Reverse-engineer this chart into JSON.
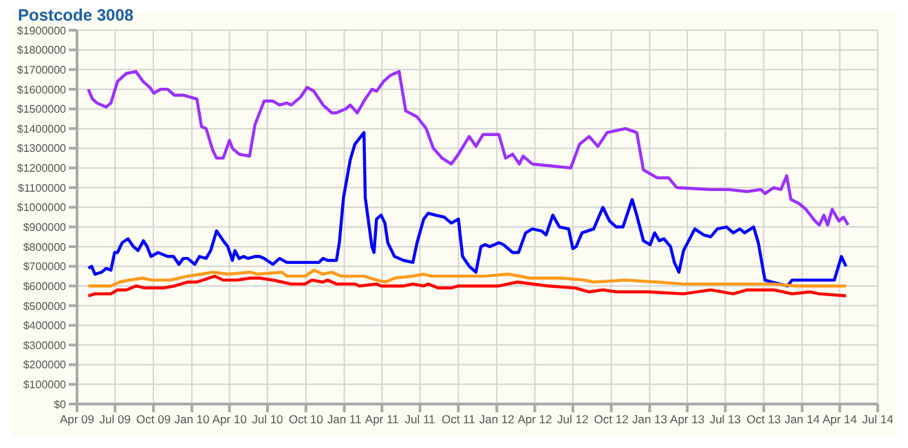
{
  "chart_data": {
    "type": "line",
    "title": "Postcode 3008",
    "grid": true,
    "marker": "none",
    "line_style": "solid",
    "xlim": [
      "2009-04-01",
      "2014-07-01"
    ],
    "xticks": [
      {
        "value": "2009-04-01",
        "label": "Apr 09"
      },
      {
        "value": "2009-07-01",
        "label": "Jul 09"
      },
      {
        "value": "2009-10-01",
        "label": "Oct 09"
      },
      {
        "value": "2010-01-01",
        "label": "Jan 10"
      },
      {
        "value": "2010-04-01",
        "label": "Apr 10"
      },
      {
        "value": "2010-07-01",
        "label": "Jul 10"
      },
      {
        "value": "2010-10-01",
        "label": "Oct 10"
      },
      {
        "value": "2011-01-01",
        "label": "Jan 11"
      },
      {
        "value": "2011-04-01",
        "label": "Apr 11"
      },
      {
        "value": "2011-07-01",
        "label": "Jul 11"
      },
      {
        "value": "2011-10-01",
        "label": "Oct 11"
      },
      {
        "value": "2012-01-01",
        "label": "Jan 12"
      },
      {
        "value": "2012-04-01",
        "label": "Apr 12"
      },
      {
        "value": "2012-07-01",
        "label": "Jul 12"
      },
      {
        "value": "2012-10-01",
        "label": "Oct 12"
      },
      {
        "value": "2013-01-01",
        "label": "Jan 13"
      },
      {
        "value": "2013-04-01",
        "label": "Apr 13"
      },
      {
        "value": "2013-07-01",
        "label": "Jul 13"
      },
      {
        "value": "2013-10-01",
        "label": "Oct 13"
      },
      {
        "value": "2014-01-01",
        "label": "Jan 14"
      },
      {
        "value": "2014-04-01",
        "label": "Apr 14"
      },
      {
        "value": "2014-07-01",
        "label": "Jul 14"
      }
    ],
    "ylim": [
      0,
      1900000
    ],
    "yticks": [
      {
        "value": 0,
        "label": "$0"
      },
      {
        "value": 100000,
        "label": "$100000"
      },
      {
        "value": 200000,
        "label": "$200000"
      },
      {
        "value": 300000,
        "label": "$300000"
      },
      {
        "value": 400000,
        "label": "$400000"
      },
      {
        "value": 500000,
        "label": "$500000"
      },
      {
        "value": 600000,
        "label": "$600000"
      },
      {
        "value": 700000,
        "label": "$700000"
      },
      {
        "value": 800000,
        "label": "$800000"
      },
      {
        "value": 900000,
        "label": "$900000"
      },
      {
        "value": 1000000,
        "label": "$1000000"
      },
      {
        "value": 1100000,
        "label": "$1100000"
      },
      {
        "value": 1200000,
        "label": "$1200000"
      },
      {
        "value": 1300000,
        "label": "$1300000"
      },
      {
        "value": 1400000,
        "label": "$1400000"
      },
      {
        "value": 1500000,
        "label": "$1500000"
      },
      {
        "value": 1600000,
        "label": "$1600000"
      },
      {
        "value": 1700000,
        "label": "$1700000"
      },
      {
        "value": 1800000,
        "label": "$1800000"
      },
      {
        "value": 1900000,
        "label": "$1900000"
      }
    ],
    "series": [
      {
        "color": "#9b30ff",
        "x": [
          "2009-04-28",
          "2009-05-08",
          "2009-05-19",
          "2009-06-10",
          "2009-06-21",
          "2009-07-07",
          "2009-07-28",
          "2009-08-20",
          "2009-09-06",
          "2009-09-22",
          "2009-10-02",
          "2009-10-18",
          "2009-11-04",
          "2009-11-20",
          "2009-12-11",
          "2009-12-28",
          "2010-01-13",
          "2010-01-24",
          "2010-02-04",
          "2010-02-20",
          "2010-03-01",
          "2010-03-17",
          "2010-04-01",
          "2010-04-08",
          "2010-04-24",
          "2010-05-19",
          "2010-06-01",
          "2010-06-23",
          "2010-07-14",
          "2010-07-30",
          "2010-08-16",
          "2010-08-27",
          "2010-09-18",
          "2010-10-04",
          "2010-10-20",
          "2010-11-11",
          "2010-12-02",
          "2010-12-13",
          "2011-01-04",
          "2011-01-15",
          "2011-02-01",
          "2011-02-17",
          "2011-03-08",
          "2011-03-19",
          "2011-04-05",
          "2011-04-21",
          "2011-05-12",
          "2011-05-28",
          "2011-06-24",
          "2011-07-16",
          "2011-08-02",
          "2011-08-23",
          "2011-09-14",
          "2011-10-01",
          "2011-10-27",
          "2011-11-12",
          "2011-11-29",
          "2012-01-06",
          "2012-01-22",
          "2012-02-08",
          "2012-02-24",
          "2012-03-04",
          "2012-03-26",
          "2012-06-26",
          "2012-07-17",
          "2012-08-09",
          "2012-08-30",
          "2012-09-21",
          "2012-11-04",
          "2012-12-01",
          "2012-12-17",
          "2013-01-19",
          "2013-02-15",
          "2013-03-07",
          "2013-05-27",
          "2013-07-09",
          "2013-08-22",
          "2013-09-24",
          "2013-10-04",
          "2013-10-25",
          "2013-11-11",
          "2013-11-25",
          "2013-12-05",
          "2013-12-24",
          "2014-01-10",
          "2014-02-01",
          "2014-02-11",
          "2014-02-22",
          "2014-03-03",
          "2014-03-14",
          "2014-03-30",
          "2014-04-10",
          "2014-04-21"
        ],
        "values": [
          1600000,
          1550000,
          1530000,
          1510000,
          1530000,
          1640000,
          1680000,
          1690000,
          1640000,
          1610000,
          1580000,
          1600000,
          1600000,
          1570000,
          1570000,
          1560000,
          1550000,
          1410000,
          1400000,
          1290000,
          1250000,
          1250000,
          1340000,
          1300000,
          1270000,
          1260000,
          1420000,
          1540000,
          1540000,
          1520000,
          1530000,
          1520000,
          1560000,
          1610000,
          1590000,
          1520000,
          1480000,
          1480000,
          1500000,
          1520000,
          1480000,
          1540000,
          1600000,
          1590000,
          1640000,
          1670000,
          1690000,
          1490000,
          1460000,
          1400000,
          1300000,
          1250000,
          1220000,
          1270000,
          1360000,
          1310000,
          1370000,
          1370000,
          1250000,
          1270000,
          1220000,
          1260000,
          1220000,
          1200000,
          1320000,
          1360000,
          1310000,
          1380000,
          1400000,
          1380000,
          1190000,
          1150000,
          1150000,
          1100000,
          1090000,
          1090000,
          1080000,
          1090000,
          1070000,
          1100000,
          1090000,
          1160000,
          1040000,
          1020000,
          990000,
          930000,
          910000,
          960000,
          910000,
          990000,
          930000,
          950000,
          910000
        ]
      },
      {
        "color": "#0000ff",
        "x": [
          "2009-04-28",
          "2009-05-06",
          "2009-05-14",
          "2009-05-30",
          "2009-06-10",
          "2009-06-21",
          "2009-06-30",
          "2009-07-07",
          "2009-07-18",
          "2009-08-01",
          "2009-08-14",
          "2009-08-25",
          "2009-09-07",
          "2009-09-16",
          "2009-09-25",
          "2009-10-12",
          "2009-11-04",
          "2009-11-18",
          "2009-12-01",
          "2009-12-11",
          "2009-12-22",
          "2010-01-08",
          "2010-01-19",
          "2010-02-04",
          "2010-02-15",
          "2010-03-01",
          "2010-03-17",
          "2010-03-28",
          "2010-04-08",
          "2010-04-14",
          "2010-04-24",
          "2010-05-05",
          "2010-05-15",
          "2010-06-01",
          "2010-06-12",
          "2010-06-23",
          "2010-07-14",
          "2010-07-30",
          "2010-08-16",
          "2010-11-01",
          "2010-11-11",
          "2010-11-22",
          "2010-12-13",
          "2010-12-20",
          "2010-12-30",
          "2011-01-15",
          "2011-01-26",
          "2011-02-17",
          "2011-02-20",
          "2011-02-27",
          "2011-03-08",
          "2011-03-13",
          "2011-03-19",
          "2011-03-30",
          "2011-04-08",
          "2011-04-15",
          "2011-05-01",
          "2011-05-23",
          "2011-06-14",
          "2011-06-24",
          "2011-07-10",
          "2011-07-21",
          "2011-08-07",
          "2011-08-28",
          "2011-09-14",
          "2011-10-01",
          "2011-10-11",
          "2011-10-27",
          "2011-11-12",
          "2011-11-24",
          "2011-12-04",
          "2011-12-15",
          "2012-01-06",
          "2012-01-17",
          "2012-02-08",
          "2012-02-22",
          "2012-03-10",
          "2012-03-26",
          "2012-04-17",
          "2012-04-28",
          "2012-05-14",
          "2012-05-30",
          "2012-06-21",
          "2012-07-01",
          "2012-07-09",
          "2012-07-23",
          "2012-08-20",
          "2012-09-11",
          "2012-09-27",
          "2012-10-13",
          "2012-10-29",
          "2012-11-20",
          "2012-12-01",
          "2012-12-17",
          "2013-01-02",
          "2013-01-13",
          "2013-01-24",
          "2013-02-04",
          "2013-02-20",
          "2013-03-01",
          "2013-03-12",
          "2013-03-23",
          "2013-04-19",
          "2013-05-10",
          "2013-05-27",
          "2013-06-12",
          "2013-07-04",
          "2013-07-20",
          "2013-08-05",
          "2013-08-16",
          "2013-09-07",
          "2013-09-18",
          "2013-10-04",
          "2013-10-20",
          "2013-11-27",
          "2013-12-08",
          "2013-12-29",
          "2014-03-19",
          "2014-04-05",
          "2014-04-16"
        ],
        "values": [
          690000,
          700000,
          660000,
          670000,
          690000,
          680000,
          770000,
          770000,
          820000,
          840000,
          800000,
          780000,
          830000,
          800000,
          750000,
          770000,
          750000,
          750000,
          710000,
          740000,
          740000,
          710000,
          750000,
          740000,
          780000,
          880000,
          830000,
          800000,
          730000,
          780000,
          740000,
          750000,
          740000,
          750000,
          750000,
          740000,
          710000,
          740000,
          720000,
          720000,
          740000,
          730000,
          730000,
          820000,
          1050000,
          1240000,
          1320000,
          1380000,
          1050000,
          940000,
          800000,
          770000,
          940000,
          960000,
          920000,
          820000,
          750000,
          730000,
          720000,
          820000,
          940000,
          970000,
          960000,
          950000,
          920000,
          940000,
          750000,
          700000,
          670000,
          800000,
          810000,
          800000,
          820000,
          810000,
          770000,
          770000,
          870000,
          890000,
          880000,
          860000,
          960000,
          900000,
          890000,
          790000,
          800000,
          870000,
          890000,
          1000000,
          930000,
          900000,
          900000,
          1040000,
          960000,
          830000,
          810000,
          870000,
          830000,
          840000,
          800000,
          720000,
          670000,
          780000,
          890000,
          860000,
          850000,
          890000,
          900000,
          870000,
          890000,
          870000,
          900000,
          820000,
          630000,
          620000,
          600000,
          630000,
          630000,
          630000,
          750000,
          700000
        ]
      },
      {
        "color": "#ff9a1a",
        "x": [
          "2009-04-28",
          "2009-05-30",
          "2009-06-21",
          "2009-07-12",
          "2009-08-04",
          "2009-09-06",
          "2009-09-27",
          "2009-11-10",
          "2009-12-22",
          "2010-01-24",
          "2010-02-20",
          "2010-03-28",
          "2010-05-21",
          "2010-06-07",
          "2010-08-05",
          "2010-08-16",
          "2010-09-29",
          "2010-10-20",
          "2010-11-11",
          "2010-12-02",
          "2010-12-24",
          "2011-02-17",
          "2011-03-19",
          "2011-04-10",
          "2011-05-01",
          "2011-06-14",
          "2011-07-10",
          "2011-07-27",
          "2011-10-01",
          "2011-12-04",
          "2012-01-28",
          "2012-03-21",
          "2012-06-05",
          "2012-07-29",
          "2012-08-20",
          "2012-11-04",
          "2013-01-19",
          "2013-03-23",
          "2013-05-27",
          "2013-09-02",
          "2013-10-25",
          "2013-12-18",
          "2014-02-11",
          "2014-03-03",
          "2014-04-16"
        ],
        "values": [
          600000,
          600000,
          600000,
          620000,
          630000,
          640000,
          630000,
          630000,
          650000,
          660000,
          670000,
          660000,
          670000,
          660000,
          670000,
          650000,
          650000,
          680000,
          660000,
          670000,
          650000,
          650000,
          630000,
          620000,
          640000,
          650000,
          660000,
          650000,
          650000,
          650000,
          660000,
          640000,
          640000,
          630000,
          620000,
          630000,
          620000,
          610000,
          610000,
          610000,
          610000,
          600000,
          600000,
          600000,
          600000
        ]
      },
      {
        "color": "#ff0000",
        "x": [
          "2009-04-28",
          "2009-05-14",
          "2009-06-21",
          "2009-07-07",
          "2009-07-28",
          "2009-08-20",
          "2009-09-11",
          "2009-09-27",
          "2009-10-24",
          "2009-11-20",
          "2009-12-22",
          "2010-01-13",
          "2010-02-25",
          "2010-03-17",
          "2010-04-19",
          "2010-05-21",
          "2010-06-12",
          "2010-07-14",
          "2010-08-05",
          "2010-08-27",
          "2010-09-29",
          "2010-10-15",
          "2010-11-11",
          "2010-11-22",
          "2010-12-13",
          "2011-01-26",
          "2011-02-06",
          "2011-03-19",
          "2011-03-30",
          "2011-05-23",
          "2011-06-14",
          "2011-07-10",
          "2011-07-21",
          "2011-08-13",
          "2011-09-14",
          "2011-10-01",
          "2011-11-12",
          "2012-01-06",
          "2012-02-19",
          "2012-05-04",
          "2012-07-07",
          "2012-08-09",
          "2012-09-11",
          "2012-10-13",
          "2012-12-28",
          "2013-03-23",
          "2013-05-27",
          "2013-07-20",
          "2013-08-22",
          "2013-10-25",
          "2013-12-08",
          "2014-01-21",
          "2014-02-11",
          "2014-04-16"
        ],
        "values": [
          550000,
          560000,
          560000,
          580000,
          580000,
          600000,
          590000,
          590000,
          590000,
          600000,
          620000,
          620000,
          650000,
          630000,
          630000,
          640000,
          640000,
          630000,
          620000,
          610000,
          610000,
          630000,
          620000,
          630000,
          610000,
          610000,
          600000,
          610000,
          600000,
          600000,
          610000,
          600000,
          610000,
          590000,
          590000,
          600000,
          600000,
          600000,
          620000,
          600000,
          590000,
          570000,
          580000,
          570000,
          570000,
          560000,
          580000,
          560000,
          580000,
          580000,
          560000,
          570000,
          560000,
          550000
        ]
      }
    ]
  }
}
